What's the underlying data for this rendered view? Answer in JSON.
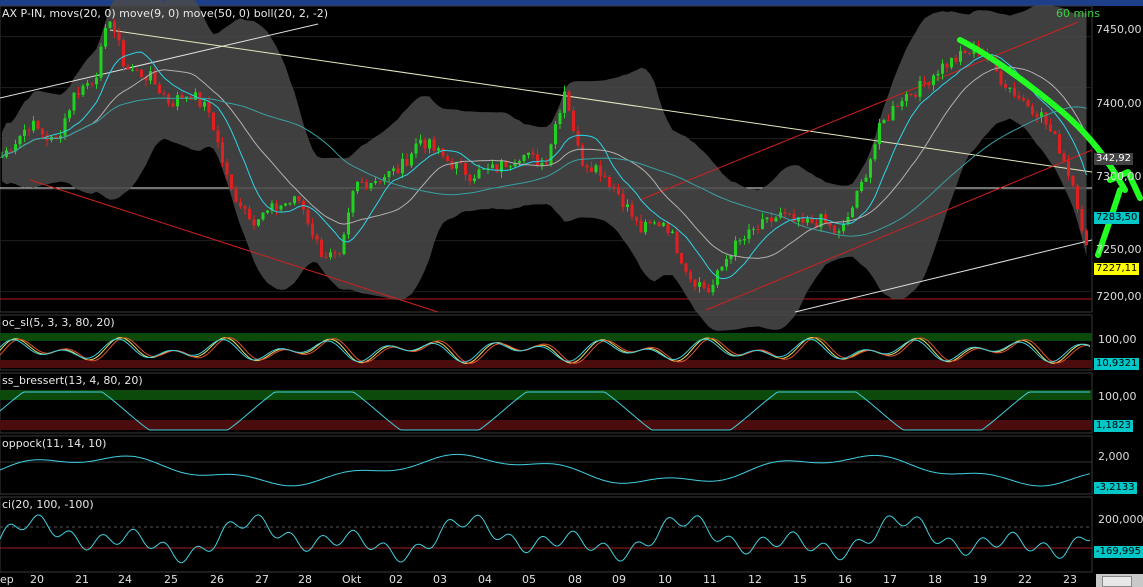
{
  "window": {
    "accent": "#1d3f8a"
  },
  "main_panel": {
    "header": "AX P-IN, movs(20, 0) move(9, 0) move(50, 0) boll(20, 2, -2)",
    "timeframe": "60 mins",
    "y_ticks": [
      "7450,00",
      "7400,00",
      "7350,00",
      "7300,00",
      "7250,00",
      "7200,00"
    ],
    "value_boxes": [
      {
        "label": "342,92",
        "bg": "#444444",
        "fg": "#ffffff"
      },
      {
        "label": "7283,50",
        "bg": "#00c8c8",
        "fg": "#000000"
      },
      {
        "label": "7227,11",
        "bg": "#ffff00",
        "fg": "#000000"
      }
    ],
    "up_color": "#22d022",
    "down_color": "#e02020",
    "band_color": "#4a4a4a",
    "annotation_color": "#22ff22"
  },
  "panels": [
    {
      "header": "oc_sl(5, 3, 3, 80, 20)",
      "y_tick": "100,00",
      "value": "10,9321",
      "value_bg": "#00c8c8"
    },
    {
      "header": "ss_bressert(13, 4, 80, 20)",
      "y_tick": "100,00",
      "value": "1,1823",
      "value_bg": "#00c8c8"
    },
    {
      "header": "oppock(11, 14, 10)",
      "y_tick": "2,000",
      "value": "-3,2133",
      "value_bg": "#00c8c8"
    },
    {
      "header": "ci(20, 100, -100)",
      "y_tick": "200,000",
      "value": "-169,995",
      "value_bg": "#00c8c8"
    }
  ],
  "x_axis": {
    "labels": [
      "ep",
      "20",
      "21",
      "24",
      "25",
      "26",
      "27",
      "28",
      "Okt",
      "02",
      "03",
      "04",
      "05",
      "08",
      "09",
      "10",
      "11",
      "12",
      "15",
      "16",
      "17",
      "18",
      "19",
      "22",
      "23"
    ]
  },
  "chart_data": {
    "type": "candlestick",
    "ylim": [
      7180,
      7480
    ],
    "close_path_x": [
      0,
      30,
      55,
      75,
      95,
      110,
      125,
      150,
      170,
      190,
      210,
      230,
      255,
      280,
      300,
      320,
      340,
      355,
      375,
      400,
      420,
      445,
      470,
      495,
      520,
      545,
      565,
      580,
      600,
      620,
      640,
      665,
      690,
      710,
      730,
      755,
      780,
      800,
      820,
      840,
      860,
      880,
      900,
      920,
      940,
      960,
      980,
      1000,
      1020,
      1040,
      1060,
      1075,
      1090
    ],
    "close_path_y": [
      7330,
      7365,
      7345,
      7395,
      7410,
      7470,
      7420,
      7410,
      7385,
      7395,
      7375,
      7300,
      7270,
      7285,
      7290,
      7240,
      7230,
      7305,
      7310,
      7320,
      7350,
      7330,
      7315,
      7320,
      7335,
      7325,
      7400,
      7330,
      7320,
      7295,
      7260,
      7270,
      7215,
      7200,
      7240,
      7260,
      7275,
      7265,
      7270,
      7255,
      7300,
      7360,
      7390,
      7400,
      7420,
      7430,
      7440,
      7410,
      7390,
      7375,
      7340,
      7300,
      7225
    ],
    "series": [
      {
        "name": "boll(20, 2, -2)"
      },
      {
        "name": "move(9, 0)"
      },
      {
        "name": "move(50, 0)"
      }
    ]
  }
}
